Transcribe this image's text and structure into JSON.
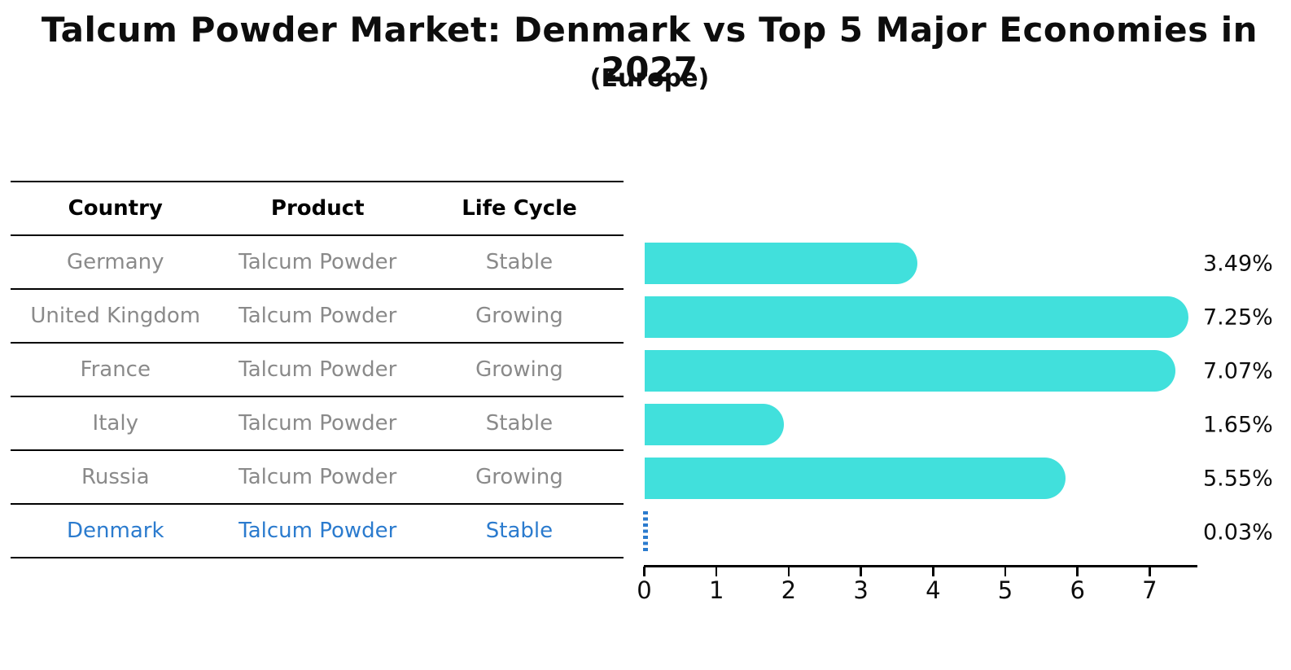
{
  "title": "Talcum Powder Market: Denmark vs Top 5 Major Economies in 2027",
  "subtitle": "(Europe)",
  "table": {
    "columns": [
      "Country",
      "Product",
      "Life Cycle"
    ],
    "rows": [
      {
        "country": "Germany",
        "product": "Talcum Powder",
        "life_cycle": "Stable",
        "highlight": false
      },
      {
        "country": "United Kingdom",
        "product": "Talcum Powder",
        "life_cycle": "Growing",
        "highlight": false
      },
      {
        "country": "France",
        "product": "Talcum Powder",
        "life_cycle": "Growing",
        "highlight": false
      },
      {
        "country": "Italy",
        "product": "Talcum Powder",
        "life_cycle": "Stable",
        "highlight": false
      },
      {
        "country": "Russia",
        "product": "Talcum Powder",
        "life_cycle": "Growing",
        "highlight": false
      },
      {
        "country": "Denmark",
        "product": "Talcum Powder",
        "life_cycle": "Stable",
        "highlight": true
      }
    ]
  },
  "chart_data": {
    "type": "bar",
    "orientation": "horizontal",
    "title": "Talcum Powder Market: Denmark vs Top 5 Major Economies in 2027",
    "subtitle": "(Europe)",
    "categories": [
      "Germany",
      "United Kingdom",
      "France",
      "Italy",
      "Russia",
      "Denmark"
    ],
    "values": [
      3.49,
      7.25,
      7.07,
      1.65,
      5.55,
      0.03
    ],
    "value_labels": [
      "3.49%",
      "7.25%",
      "7.07%",
      "1.65%",
      "5.55%",
      "0.03%"
    ],
    "x_ticks": [
      0,
      1,
      2,
      3,
      4,
      5,
      6,
      7
    ],
    "xlim": [
      0,
      7.65
    ],
    "grid": false,
    "legend": "none",
    "highlight_index": 5,
    "bar_color": "#41E0DC",
    "highlight_color": "#2B7BCE"
  },
  "colors": {
    "background": "#FFFFFF",
    "table_text": "#8A8A8A",
    "header_text": "#000000",
    "axis": "#000000",
    "value_label_text": "#0D0D0D"
  }
}
